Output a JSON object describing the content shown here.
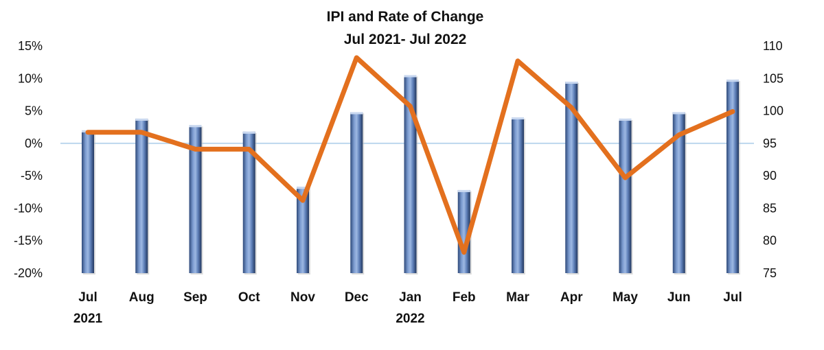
{
  "chart_data": {
    "type": "bar",
    "title": "IPI and Rate of Change",
    "subtitle": "Jul 2021- Jul 2022",
    "categories": [
      "Jul",
      "Aug",
      "Sep",
      "Oct",
      "Nov",
      "Dec",
      "Jan",
      "Feb",
      "Mar",
      "Apr",
      "May",
      "Jun",
      "Jul"
    ],
    "year_labels": [
      {
        "category_index": 0,
        "label": "2021"
      },
      {
        "category_index": 6,
        "label": "2022"
      }
    ],
    "left_axis": {
      "ylim": [
        -0.2,
        0.15
      ],
      "ticks": [
        {
          "value": 0.15,
          "label": "15%"
        },
        {
          "value": 0.1,
          "label": "10%"
        },
        {
          "value": 0.05,
          "label": "5%"
        },
        {
          "value": 0.0,
          "label": "0%"
        },
        {
          "value": -0.05,
          "label": "-5%"
        },
        {
          "value": -0.1,
          "label": "-10%"
        },
        {
          "value": -0.15,
          "label": "-15%"
        },
        {
          "value": -0.2,
          "label": "-20%"
        }
      ]
    },
    "right_axis": {
      "ylim": [
        75,
        110
      ],
      "ticks": [
        {
          "value": 110,
          "label": "110"
        },
        {
          "value": 105,
          "label": "105"
        },
        {
          "value": 100,
          "label": "100"
        },
        {
          "value": 95,
          "label": "95"
        },
        {
          "value": 90,
          "label": "90"
        },
        {
          "value": 85,
          "label": "85"
        },
        {
          "value": 80,
          "label": "80"
        },
        {
          "value": 75,
          "label": "75"
        }
      ]
    },
    "series": [
      {
        "type": "bar",
        "axis": "right",
        "color": "#5A7BB5",
        "values": [
          97,
          98.8,
          97.8,
          96.8,
          88.3,
          99.8,
          105.5,
          87.8,
          99,
          104.5,
          98.8,
          99.8,
          104.8
        ]
      },
      {
        "type": "line",
        "axis": "left",
        "color": "#E3701E",
        "values": [
          0.017,
          0.017,
          -0.009,
          -0.009,
          -0.088,
          0.132,
          0.057,
          -0.168,
          0.127,
          0.055,
          -0.053,
          0.013,
          0.049
        ]
      }
    ],
    "zero_line_color": "#BDD7EE",
    "grid": false,
    "legend": "none"
  }
}
